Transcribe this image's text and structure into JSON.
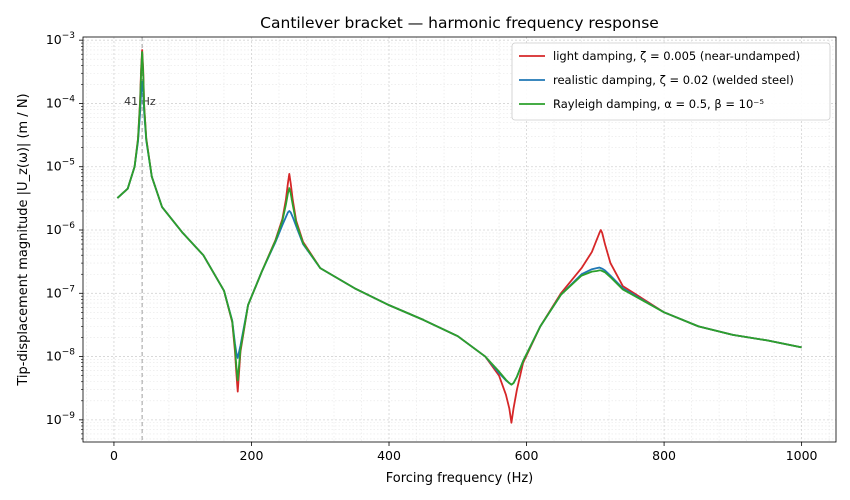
{
  "chart_data": {
    "type": "line",
    "title": "Cantilever bracket — harmonic frequency response",
    "xlabel": "Forcing frequency (Hz)",
    "ylabel": "Tip-displacement magnitude |U_z(ω)| (m / N)",
    "xlim": [
      -45,
      1050
    ],
    "ylim_log10": [
      -9.35,
      -2.95
    ],
    "yscale": "log",
    "grid": true,
    "x_ticks": [
      0,
      200,
      400,
      600,
      800,
      1000
    ],
    "y_tick_exponents": [
      -9,
      -8,
      -7,
      -6,
      -5,
      -4,
      -3
    ],
    "legend_position": "top-right",
    "series": [
      {
        "name": "light damping, ζ = 0.005  (near-undamped)",
        "color": "#d62728",
        "x": [
          5,
          20,
          30,
          35,
          38,
          39.5,
          41,
          42.5,
          44,
          47,
          55,
          70,
          100,
          130,
          160,
          172,
          176,
          178,
          180,
          184,
          195,
          215,
          235,
          245,
          250,
          253,
          255,
          257,
          260,
          265,
          275,
          300,
          350,
          400,
          450,
          500,
          540,
          560,
          570,
          575,
          578,
          581,
          586,
          595,
          620,
          650,
          680,
          695,
          702,
          706,
          708,
          710,
          714,
          722,
          740,
          800,
          850,
          900,
          950,
          1000
        ],
        "y": [
          3.2e-06,
          4.5e-06,
          1e-05,
          2.8e-05,
          0.00011,
          0.00035,
          0.0007,
          0.00035,
          9e-05,
          2.8e-05,
          7e-06,
          2.3e-06,
          9e-07,
          4e-07,
          1.1e-07,
          3.5e-08,
          1.2e-08,
          5.5e-09,
          2.8e-09,
          1.2e-08,
          6.5e-08,
          2.2e-07,
          7e-07,
          1.5e-06,
          3e-06,
          5.5e-06,
          7.7e-06,
          5.5e-06,
          3e-06,
          1.4e-06,
          6.5e-07,
          2.5e-07,
          1.2e-07,
          6.5e-08,
          3.8e-08,
          2.1e-08,
          1e-08,
          5e-09,
          2.5e-09,
          1.5e-09,
          9e-10,
          1.5e-09,
          3e-09,
          8e-09,
          3e-08,
          1e-07,
          2.5e-07,
          4.5e-07,
          7e-07,
          9e-07,
          1e-06,
          9e-07,
          6e-07,
          3e-07,
          1.3e-07,
          5e-08,
          3e-08,
          2.2e-08,
          1.8e-08,
          1.4e-08
        ]
      },
      {
        "name": "realistic damping, ζ = 0.02  (welded steel)",
        "color": "#1f77b4",
        "x": [
          5,
          20,
          30,
          35,
          38,
          39.5,
          41,
          42.5,
          44,
          47,
          55,
          70,
          100,
          130,
          160,
          172,
          176,
          178,
          180,
          184,
          195,
          215,
          235,
          245,
          250,
          253,
          255,
          257,
          260,
          265,
          275,
          300,
          350,
          400,
          450,
          500,
          540,
          560,
          570,
          575,
          578,
          581,
          586,
          595,
          620,
          650,
          680,
          695,
          702,
          706,
          708,
          710,
          714,
          722,
          740,
          800,
          850,
          900,
          950,
          1000
        ],
        "y": [
          3.2e-06,
          4.5e-06,
          1e-05,
          2.5e-05,
          7e-05,
          0.00015,
          0.00022,
          0.00015,
          7e-05,
          2.6e-05,
          7e-06,
          2.3e-06,
          9e-07,
          4e-07,
          1.1e-07,
          3.7e-08,
          1.6e-08,
          1.15e-08,
          9.5e-09,
          1.5e-08,
          6.5e-08,
          2.2e-07,
          6.5e-07,
          1.2e-06,
          1.6e-06,
          1.9e-06,
          2e-06,
          1.9e-06,
          1.6e-06,
          1.15e-06,
          6e-07,
          2.5e-07,
          1.2e-07,
          6.5e-08,
          3.8e-08,
          2.1e-08,
          1e-08,
          5.5e-09,
          4.2e-09,
          3.8e-09,
          3.6e-09,
          3.8e-09,
          4.8e-09,
          8.5e-09,
          3e-08,
          9.5e-08,
          2e-07,
          2.4e-07,
          2.5e-07,
          2.55e-07,
          2.5e-07,
          2.45e-07,
          2.3e-07,
          1.9e-07,
          1.2e-07,
          5e-08,
          3e-08,
          2.2e-08,
          1.8e-08,
          1.4e-08
        ]
      },
      {
        "name": "Rayleigh damping, α = 0.5, β = 10⁻⁵",
        "color": "#2ca02c",
        "x": [
          5,
          20,
          30,
          35,
          38,
          39.5,
          41,
          42.5,
          44,
          47,
          55,
          70,
          100,
          130,
          160,
          172,
          176,
          178,
          180,
          184,
          195,
          215,
          235,
          245,
          250,
          253,
          255,
          257,
          260,
          265,
          275,
          300,
          350,
          400,
          450,
          500,
          540,
          560,
          570,
          575,
          578,
          581,
          586,
          595,
          620,
          650,
          680,
          695,
          702,
          706,
          708,
          710,
          714,
          722,
          740,
          800,
          850,
          900,
          950,
          1000
        ],
        "y": [
          3.2e-06,
          4.5e-06,
          1e-05,
          2.7e-05,
          0.0001,
          0.0003,
          0.00065,
          0.0003,
          8.5e-05,
          2.7e-05,
          7e-06,
          2.3e-06,
          9e-07,
          4e-07,
          1.1e-07,
          3.6e-08,
          1.4e-08,
          7e-09,
          4.2e-09,
          1.3e-08,
          6.5e-08,
          2.2e-07,
          6.8e-07,
          1.4e-06,
          2.5e-06,
          3.8e-06,
          4.6e-06,
          3.8e-06,
          2.5e-06,
          1.3e-06,
          6.2e-07,
          2.5e-07,
          1.2e-07,
          6.5e-08,
          3.8e-08,
          2.1e-08,
          1e-08,
          5.8e-09,
          4.3e-09,
          3.8e-09,
          3.6e-09,
          3.8e-09,
          4.8e-09,
          8.5e-09,
          3e-08,
          9.5e-08,
          1.9e-07,
          2.2e-07,
          2.25e-07,
          2.3e-07,
          2.3e-07,
          2.25e-07,
          2.15e-07,
          1.8e-07,
          1.15e-07,
          5e-08,
          3e-08,
          2.2e-08,
          1.8e-08,
          1.4e-08
        ]
      }
    ],
    "vline": {
      "x": 41,
      "label": "41 Hz",
      "label_y": 0.00011,
      "color": "#999999"
    }
  }
}
